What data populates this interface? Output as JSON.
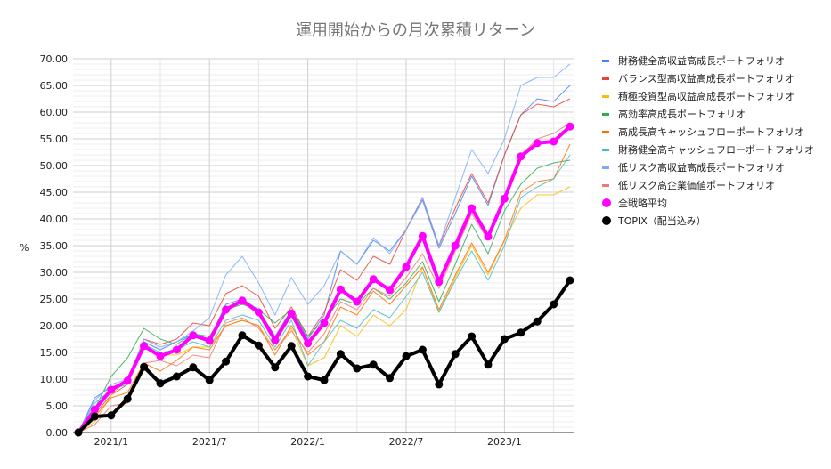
{
  "chart_data": {
    "type": "line",
    "title": "運用開始からの月次累積リターン",
    "xlabel": "",
    "ylabel": "%",
    "ylim": [
      0,
      70
    ],
    "yticks": [
      "0.00",
      "5.00",
      "10.00",
      "15.00",
      "20.00",
      "25.00",
      "30.00",
      "35.00",
      "40.00",
      "45.00",
      "50.00",
      "55.00",
      "60.00",
      "65.00",
      "70.00"
    ],
    "xtick_labels": [
      "2021/1",
      "2021/7",
      "2022/1",
      "2022/7",
      "2023/1"
    ],
    "x": [
      "2020/11",
      "2020/12",
      "2021/1",
      "2021/2",
      "2021/3",
      "2021/4",
      "2021/5",
      "2021/6",
      "2021/7",
      "2021/8",
      "2021/9",
      "2021/10",
      "2021/11",
      "2021/12",
      "2022/1",
      "2022/2",
      "2022/3",
      "2022/4",
      "2022/5",
      "2022/6",
      "2022/7",
      "2022/8",
      "2022/9",
      "2022/10",
      "2022/11",
      "2022/12",
      "2023/1",
      "2023/2",
      "2023/3",
      "2023/4",
      "2023/5"
    ],
    "grid": true,
    "legend_position": "right",
    "series": [
      {
        "name": "財務健全高収益高成長ポートフォリオ",
        "color": "#4285f4",
        "width": 1,
        "markers": false,
        "values": [
          0,
          6.5,
          8.5,
          9.5,
          17,
          15.5,
          17,
          18.5,
          17.5,
          24,
          25,
          23,
          18,
          23,
          17.5,
          22,
          34,
          31.5,
          36,
          34,
          38,
          43.5,
          34.5,
          41,
          48,
          42.5,
          52,
          59.5,
          62.5,
          62,
          65
        ]
      },
      {
        "name": "バランス型高収益高成長ポートフォリオ",
        "color": "#ea4335",
        "width": 1,
        "markers": false,
        "values": [
          0,
          3.5,
          7,
          9,
          17.5,
          16.5,
          17.5,
          20.5,
          20,
          26,
          27.5,
          25.5,
          19.5,
          23.5,
          18,
          22.5,
          30.5,
          28.5,
          33,
          31.5,
          38,
          44,
          35,
          42,
          48.5,
          43,
          52,
          59.5,
          61.5,
          61,
          62.5
        ]
      },
      {
        "name": "積極投資型高収益高成長ポートフォリオ",
        "color": "#fbbc04",
        "width": 1,
        "markers": false,
        "values": [
          0,
          2,
          7,
          10,
          16,
          14.5,
          14.5,
          16,
          16,
          20,
          21,
          20,
          15.5,
          19.5,
          12.5,
          14,
          20,
          18,
          22,
          20,
          23,
          31,
          22.5,
          29,
          35,
          29.5,
          36,
          42,
          44.5,
          44.5,
          46
        ]
      },
      {
        "name": "高効率高成長ポートフォリオ",
        "color": "#34a853",
        "width": 1,
        "markers": false,
        "values": [
          0,
          4.5,
          10.5,
          14,
          19.5,
          17.5,
          16.5,
          18.5,
          18,
          23,
          24,
          23,
          20.5,
          23,
          18,
          21,
          25,
          24,
          27,
          25,
          28,
          32,
          24.5,
          31.5,
          39,
          33.5,
          41.5,
          46.5,
          49.5,
          50.5,
          51
        ]
      },
      {
        "name": "高成長高キャッシュフローポートフォリオ",
        "color": "#ff6d01",
        "width": 1,
        "markers": false,
        "values": [
          0,
          3,
          6.5,
          7.5,
          13,
          11.5,
          13.5,
          16,
          15.5,
          20,
          21,
          20,
          14.5,
          20,
          14.5,
          17,
          23.5,
          22,
          26.5,
          24,
          27.5,
          31,
          23,
          29.5,
          35.5,
          30,
          36,
          45,
          47,
          47.5,
          54
        ]
      },
      {
        "name": "財務健全高キャッシュフローポートフォリオ",
        "color": "#46bdc6",
        "width": 1,
        "markers": false,
        "values": [
          0,
          5.5,
          8,
          9,
          16.5,
          15,
          15.5,
          17,
          16,
          21,
          22,
          21,
          16,
          21,
          12.5,
          17,
          21,
          19.5,
          23,
          21.5,
          25.5,
          30,
          22.5,
          28.5,
          34,
          28.5,
          35,
          44,
          46,
          47.5,
          52
        ]
      },
      {
        "name": "低リスク高収益高成長ポートフォリオ",
        "color": "#7baaf7",
        "width": 1,
        "markers": false,
        "values": [
          0,
          6,
          9,
          10,
          17.5,
          16,
          17,
          19,
          21.5,
          29.5,
          33,
          28,
          22,
          29,
          24,
          27.5,
          34,
          31.5,
          36.5,
          33.5,
          38,
          44,
          35,
          44,
          53,
          48.5,
          55,
          65,
          66.5,
          66.5,
          69
        ]
      },
      {
        "name": "低リスク高企業価値ポートフォリオ",
        "color": "#f07b72",
        "width": 1,
        "markers": false,
        "values": [
          0,
          1.5,
          5,
          5.5,
          13,
          13.5,
          12.5,
          14.5,
          14,
          20.5,
          21.5,
          19.5,
          15.5,
          19,
          15,
          18.5,
          24.5,
          23,
          27,
          25.5,
          29,
          33.5,
          27,
          34,
          41,
          36,
          44,
          52,
          55,
          56,
          58
        ]
      },
      {
        "name": "全戦略平均",
        "color": "#ff00ff",
        "width": 4,
        "markers": true,
        "values": [
          0,
          4.3,
          8,
          9.7,
          16.2,
          14.3,
          15.5,
          18.2,
          17.2,
          23,
          24.7,
          22.5,
          17.3,
          22.3,
          16.7,
          20.5,
          26.8,
          24.5,
          28.7,
          26.7,
          31,
          36.8,
          28.2,
          35,
          42,
          36.7,
          43.8,
          51.7,
          54.2,
          54.5,
          57.3
        ]
      },
      {
        "name": "TOPIX（配当込み）",
        "color": "#000000",
        "width": 4,
        "markers": true,
        "values": [
          0,
          3,
          3.2,
          6.3,
          12.3,
          9.2,
          10.5,
          12.2,
          9.8,
          13.3,
          18.2,
          16.3,
          12.2,
          16.2,
          10.5,
          9.8,
          14.7,
          12,
          12.7,
          10.2,
          14.3,
          15.5,
          9,
          14.7,
          18,
          12.7,
          17.5,
          18.7,
          20.8,
          24,
          28.5
        ]
      }
    ]
  }
}
